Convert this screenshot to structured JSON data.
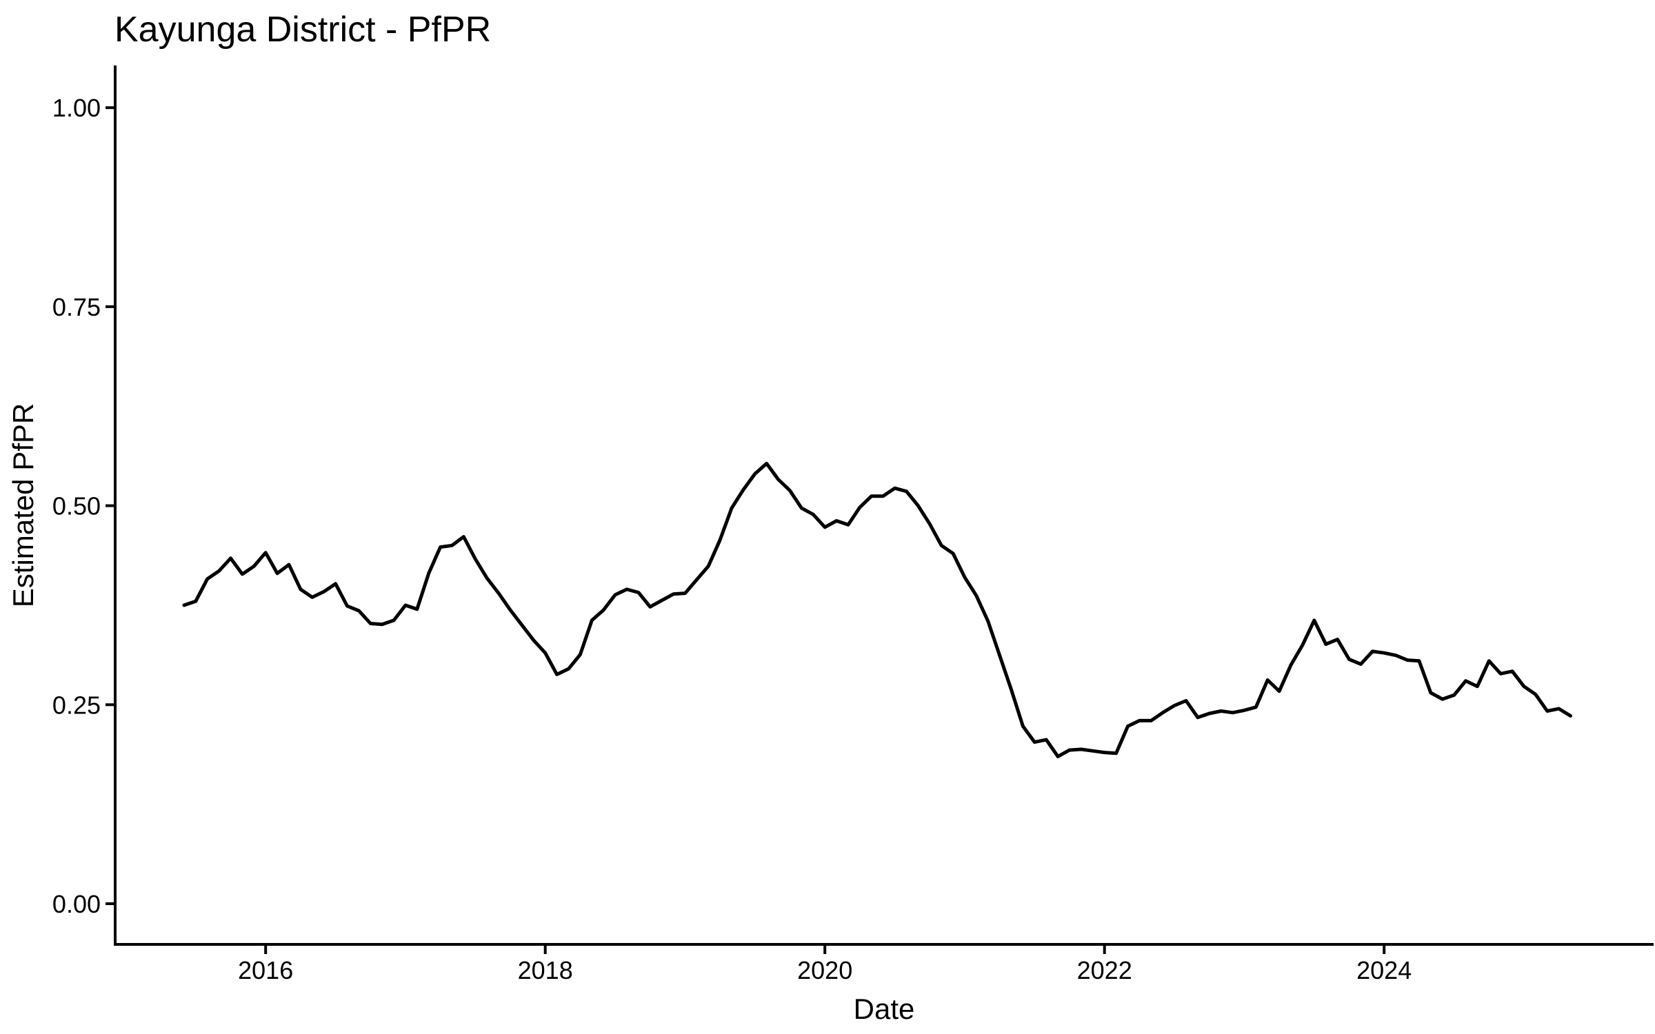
{
  "chart_data": {
    "type": "line",
    "title": "Kayunga District - PfPR",
    "xlabel": "Date",
    "ylabel": "Estimated PfPR",
    "grid": false,
    "legend": "none",
    "background_color": "#ffffff",
    "line_color": "#000000",
    "text_color": "#000000",
    "x_tick_labels": [
      "2016",
      "2018",
      "2020",
      "2022",
      "2024"
    ],
    "x_tick_years": [
      2016,
      2018,
      2020,
      2022,
      2024
    ],
    "y_tick_labels": [
      "0.00",
      "0.25",
      "0.50",
      "0.75",
      "1.00"
    ],
    "y_ticks": [
      0.0,
      0.25,
      0.5,
      0.75,
      1.0
    ],
    "xlim_years": [
      2014.93,
      2025.93
    ],
    "ylim": [
      0.0,
      1.05
    ],
    "x": [
      "2015-06",
      "2015-07",
      "2015-08",
      "2015-09",
      "2015-10",
      "2015-11",
      "2015-12",
      "2016-01",
      "2016-02",
      "2016-03",
      "2016-04",
      "2016-05",
      "2016-06",
      "2016-07",
      "2016-08",
      "2016-09",
      "2016-10",
      "2016-11",
      "2016-12",
      "2017-01",
      "2017-02",
      "2017-03",
      "2017-04",
      "2017-05",
      "2017-06",
      "2017-07",
      "2017-08",
      "2017-09",
      "2017-10",
      "2017-11",
      "2017-12",
      "2018-01",
      "2018-02",
      "2018-03",
      "2018-04",
      "2018-05",
      "2018-06",
      "2018-07",
      "2018-08",
      "2018-09",
      "2018-10",
      "2018-11",
      "2018-12",
      "2019-01",
      "2019-02",
      "2019-03",
      "2019-04",
      "2019-05",
      "2019-06",
      "2019-07",
      "2019-08",
      "2019-09",
      "2019-10",
      "2019-11",
      "2019-12",
      "2020-01",
      "2020-02",
      "2020-03",
      "2020-04",
      "2020-05",
      "2020-06",
      "2020-07",
      "2020-08",
      "2020-09",
      "2020-10",
      "2020-11",
      "2020-12",
      "2021-01",
      "2021-02",
      "2021-03",
      "2021-04",
      "2021-05",
      "2021-06",
      "2021-07",
      "2021-08",
      "2021-09",
      "2021-10",
      "2021-11",
      "2021-12",
      "2022-01",
      "2022-02",
      "2022-03",
      "2022-04",
      "2022-05",
      "2022-06",
      "2022-07",
      "2022-08",
      "2022-09",
      "2022-10",
      "2022-11",
      "2022-12",
      "2023-01",
      "2023-02",
      "2023-03",
      "2023-04",
      "2023-05",
      "2023-06",
      "2023-07",
      "2023-08",
      "2023-09",
      "2023-10",
      "2023-11",
      "2023-12",
      "2024-01",
      "2024-02",
      "2024-03",
      "2024-04",
      "2024-05",
      "2024-06",
      "2024-07",
      "2024-08",
      "2024-09",
      "2024-10",
      "2024-11",
      "2024-12",
      "2025-01",
      "2025-02",
      "2025-03",
      "2025-04",
      "2025-05"
    ],
    "values": [
      0.375,
      0.38,
      0.408,
      0.418,
      0.434,
      0.414,
      0.424,
      0.441,
      0.415,
      0.426,
      0.395,
      0.385,
      0.392,
      0.402,
      0.374,
      0.368,
      0.352,
      0.351,
      0.356,
      0.375,
      0.37,
      0.415,
      0.448,
      0.45,
      0.461,
      0.433,
      0.409,
      0.39,
      0.369,
      0.35,
      0.331,
      0.315,
      0.288,
      0.295,
      0.313,
      0.356,
      0.369,
      0.388,
      0.395,
      0.391,
      0.373,
      0.381,
      0.389,
      0.39,
      0.407,
      0.424,
      0.457,
      0.497,
      0.52,
      0.54,
      0.553,
      0.533,
      0.519,
      0.497,
      0.489,
      0.473,
      0.481,
      0.476,
      0.498,
      0.512,
      0.512,
      0.522,
      0.518,
      0.5,
      0.477,
      0.45,
      0.44,
      0.41,
      0.387,
      0.355,
      0.312,
      0.269,
      0.223,
      0.203,
      0.206,
      0.185,
      0.193,
      0.194,
      0.192,
      0.19,
      0.189,
      0.223,
      0.23,
      0.23,
      0.24,
      0.249,
      0.255,
      0.234,
      0.239,
      0.242,
      0.24,
      0.243,
      0.247,
      0.281,
      0.267,
      0.3,
      0.325,
      0.356,
      0.326,
      0.332,
      0.307,
      0.301,
      0.317,
      0.315,
      0.312,
      0.306,
      0.305,
      0.265,
      0.257,
      0.262,
      0.28,
      0.273,
      0.305,
      0.289,
      0.292,
      0.273,
      0.263,
      0.242,
      0.245,
      0.236
    ]
  }
}
